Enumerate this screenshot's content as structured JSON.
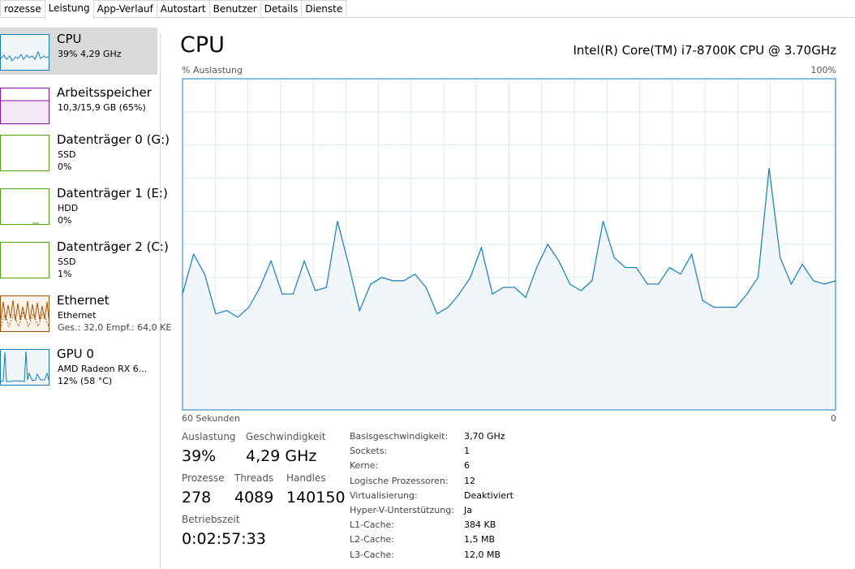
{
  "tabs": [
    "rozesse",
    "Leistung",
    "App-Verlauf",
    "Autostart",
    "Benutzer",
    "Details",
    "Dienste"
  ],
  "sidebar": [
    {
      "name": "CPU",
      "detail": "39% 4,29 GHz"
    },
    {
      "name": "Arbeitsspeicher",
      "detail": "10,3/15,9 GB (65%)"
    },
    {
      "name": "Datenträger 0 (G:)",
      "detail": "SSD",
      "detail2": "0%"
    },
    {
      "name": "Datenträger 1 (E:)",
      "detail": "HDD",
      "detail2": "0%"
    },
    {
      "name": "Datenträger 2 (C:)",
      "detail": "SSD",
      "detail2": "1%"
    },
    {
      "name": "Ethernet",
      "detail": "Ethernet",
      "detail2": "Ges.: 32,0  Empf.: 64,0 KE"
    },
    {
      "name": "GPU 0",
      "detail": "AMD Radeon RX 6...",
      "detail2": "12% (58 °C)"
    }
  ],
  "main": {
    "title": "CPU",
    "processor": "Intel(R) Core(TM) i7-8700K CPU @ 3.70GHz",
    "chart_data": {
      "type": "area",
      "y_label": "% Auslastung",
      "color": "#117dbb",
      "ylim": [
        0,
        100
      ],
      "yticks": [
        {
          "value": 100,
          "label": "100%"
        }
      ],
      "xlim": [
        60,
        0
      ],
      "xticks": [
        {
          "value": 60,
          "label": "60 Sekunden"
        },
        0
      ],
      "values": [
        35,
        47,
        41,
        29,
        30,
        28,
        31,
        37,
        45,
        35,
        35,
        45,
        36,
        37,
        57,
        44,
        30,
        38,
        40,
        39,
        39,
        41,
        37,
        29,
        31,
        35,
        40,
        49,
        35,
        37,
        37,
        34,
        43,
        50,
        45,
        38,
        36,
        39,
        57,
        46,
        43,
        43,
        38,
        38,
        43,
        41,
        47,
        33,
        31,
        31,
        31,
        35,
        40,
        73,
        46,
        38,
        44,
        39,
        38,
        39
      ]
    },
    "stats": {
      "utilization": {
        "label": "Auslastung",
        "value": "39%"
      },
      "speed": {
        "label": "Geschwindigkeit",
        "value": "4,29 GHz"
      },
      "processes": {
        "label": "Prozesse",
        "value": "278"
      },
      "threads": {
        "label": "Threads",
        "value": "4089"
      },
      "handles": {
        "label": "Handles",
        "value": "140150"
      },
      "uptime": {
        "label": "Betriebszeit",
        "value": "0:02:57:33"
      }
    },
    "details": [
      [
        "Basisgeschwindigkeit:",
        "3,70 GHz"
      ],
      [
        "Sockets:",
        "1"
      ],
      [
        "Kerne:",
        "6"
      ],
      [
        "Logische Prozessoren:",
        "12"
      ],
      [
        "Virtualisierung:",
        "Deaktiviert"
      ],
      [
        "Hyper-V-Unterstützung:",
        "Ja"
      ],
      [
        "L1-Cache:",
        "384 KB"
      ],
      [
        "L2-Cache:",
        "1,5 MB"
      ],
      [
        "L3-Cache:",
        "12,0 MB"
      ]
    ]
  }
}
